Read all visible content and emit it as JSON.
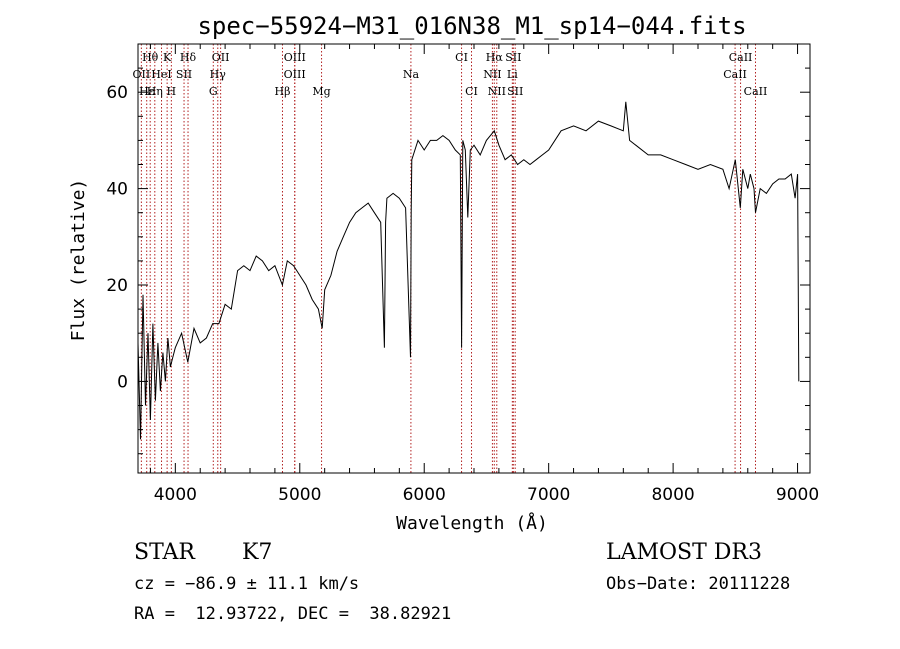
{
  "chart_data": {
    "type": "line",
    "title": "spec−55924−M31_016N38_M1_sp14−044.fits",
    "xlabel": "Wavelength (Å)",
    "ylabel": "Flux (relative)",
    "xlim": [
      3700,
      9100
    ],
    "ylim": [
      -19,
      70
    ],
    "x_ticks": [
      4000,
      5000,
      6000,
      7000,
      8000,
      9000
    ],
    "x_tick_labels": [
      "4000",
      "5000",
      "6000",
      "7000",
      "8000",
      "9000"
    ],
    "y_ticks": [
      0,
      20,
      40,
      60
    ],
    "y_tick_labels": [
      "0",
      "20",
      "40",
      "60"
    ],
    "series": [
      {
        "name": "flux",
        "color": "#000000",
        "x": [
          3700,
          3720,
          3740,
          3760,
          3780,
          3800,
          3820,
          3840,
          3860,
          3880,
          3900,
          3920,
          3940,
          3960,
          3980,
          4000,
          4050,
          4100,
          4150,
          4200,
          4250,
          4300,
          4350,
          4400,
          4450,
          4500,
          4550,
          4600,
          4650,
          4700,
          4750,
          4800,
          4860,
          4900,
          4950,
          5000,
          5050,
          5100,
          5150,
          5180,
          5200,
          5250,
          5300,
          5350,
          5400,
          5450,
          5500,
          5550,
          5600,
          5650,
          5680,
          5690,
          5700,
          5750,
          5800,
          5850,
          5890,
          5895,
          5900,
          5950,
          6000,
          6050,
          6100,
          6150,
          6200,
          6250,
          6290,
          6300,
          6310,
          6330,
          6350,
          6370,
          6400,
          6450,
          6500,
          6563,
          6600,
          6650,
          6700,
          6750,
          6800,
          6850,
          6900,
          6950,
          7000,
          7100,
          7200,
          7300,
          7400,
          7500,
          7600,
          7620,
          7650,
          7700,
          7800,
          7900,
          8000,
          8100,
          8200,
          8300,
          8400,
          8450,
          8500,
          8540,
          8560,
          8600,
          8620,
          8650,
          8662,
          8700,
          8750,
          8800,
          8850,
          8900,
          8950,
          8980,
          9000,
          9010
        ],
        "y": [
          8,
          -12,
          18,
          -5,
          10,
          -8,
          12,
          -4,
          8,
          -2,
          6,
          0,
          9,
          3,
          5,
          7,
          10,
          4,
          11,
          8,
          9,
          12,
          12,
          16,
          15,
          23,
          24,
          23,
          26,
          25,
          23,
          24,
          20,
          25,
          24,
          22,
          20,
          17,
          15,
          11,
          19,
          22,
          27,
          30,
          33,
          35,
          36,
          37,
          35,
          33,
          7,
          33,
          38,
          39,
          38,
          36,
          5,
          35,
          46,
          50,
          48,
          50,
          50,
          51,
          50,
          48,
          47,
          7,
          50,
          48,
          34,
          48,
          49,
          47,
          50,
          52,
          49,
          46,
          47,
          45,
          46,
          45,
          46,
          47,
          48,
          52,
          53,
          52,
          54,
          53,
          52,
          58,
          50,
          49,
          47,
          47,
          46,
          45,
          44,
          45,
          44,
          40,
          46,
          36,
          44,
          40,
          43,
          40,
          35,
          40,
          39,
          41,
          42,
          42,
          43,
          38,
          43,
          0
        ]
      }
    ],
    "lines": {
      "top_row_1": [
        {
          "label": "Hθ",
          "x": 3798
        },
        {
          "label": "K",
          "x": 3934
        },
        {
          "label": "Hδ",
          "x": 4102
        },
        {
          "label": "OII",
          "x": 4364
        },
        {
          "label": "OIII",
          "x": 4960
        },
        {
          "label": "CI",
          "x": 6300
        },
        {
          "label": "Hα",
          "x": 6563
        },
        {
          "label": "SII",
          "x": 6716
        },
        {
          "label": "CaII",
          "x": 8542
        }
      ],
      "top_row_2": [
        {
          "label": "OII",
          "x": 3727
        },
        {
          "label": "HeI",
          "x": 3889
        },
        {
          "label": "SII",
          "x": 4070
        },
        {
          "label": "Hγ",
          "x": 4341
        },
        {
          "label": "OIII",
          "x": 4959
        },
        {
          "label": "Na",
          "x": 5893
        },
        {
          "label": "NII",
          "x": 6548
        },
        {
          "label": "Li",
          "x": 6708
        },
        {
          "label": "CaII",
          "x": 8498
        }
      ],
      "top_row_3": [
        {
          "label": "Hε",
          "x": 3770
        },
        {
          "label": "Hη",
          "x": 3835
        },
        {
          "label": "H",
          "x": 3968
        },
        {
          "label": "G",
          "x": 4305
        },
        {
          "label": "Hβ",
          "x": 4861
        },
        {
          "label": "Mg",
          "x": 5175
        },
        {
          "label": "CI",
          "x": 6380
        },
        {
          "label": "NII",
          "x": 6583
        },
        {
          "label": "SII",
          "x": 6731
        },
        {
          "label": "CaII",
          "x": 8662
        }
      ],
      "line_color": "#b22222"
    }
  },
  "info": {
    "class": "STAR",
    "subclass": "K7",
    "survey": "LAMOST DR3",
    "cz": "cz = −86.9 ± 11.1 km/s",
    "obs_date": "Obs−Date: 20111228",
    "radec": "RA =  12.93722, DEC =  38.82921"
  }
}
